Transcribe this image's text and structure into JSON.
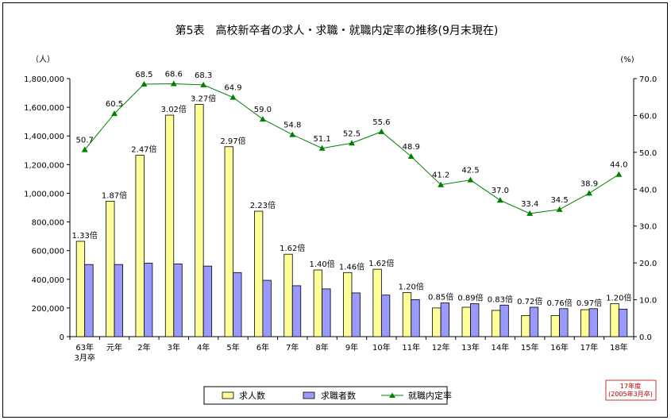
{
  "chart_data": {
    "type": "bar+line",
    "title": "第5表　高校新卒者の求人・求職・就職内定率の推移(9月末現在)",
    "left_unit": "（人）",
    "right_unit": "(%)",
    "ylim_left": [
      0,
      1800000
    ],
    "ylim_right": [
      0,
      70
    ],
    "yticks_left": [
      "0",
      "200,000",
      "400,000",
      "600,000",
      "800,000",
      "1,000,000",
      "1,200,000",
      "1,400,000",
      "1,600,000",
      "1,800,000"
    ],
    "yticks_right": [
      "0.0",
      "10.0",
      "20.0",
      "30.0",
      "40.0",
      "50.0",
      "60.0",
      "70.0"
    ],
    "categories": [
      {
        "line1": "63年",
        "line2": "3月卒"
      },
      {
        "line1": "元年",
        "line2": ""
      },
      {
        "line1": "2年",
        "line2": ""
      },
      {
        "line1": "3年",
        "line2": ""
      },
      {
        "line1": "4年",
        "line2": ""
      },
      {
        "line1": "5年",
        "line2": ""
      },
      {
        "line1": "6年",
        "line2": ""
      },
      {
        "line1": "7年",
        "line2": ""
      },
      {
        "line1": "8年",
        "line2": ""
      },
      {
        "line1": "9年",
        "line2": ""
      },
      {
        "line1": "10年",
        "line2": ""
      },
      {
        "line1": "11年",
        "line2": ""
      },
      {
        "line1": "12年",
        "line2": ""
      },
      {
        "line1": "13年",
        "line2": ""
      },
      {
        "line1": "14年",
        "line2": ""
      },
      {
        "line1": "15年",
        "line2": ""
      },
      {
        "line1": "16年",
        "line2": ""
      },
      {
        "line1": "17年",
        "line2": ""
      },
      {
        "line1": "18年",
        "line2": ""
      }
    ],
    "series": [
      {
        "name": "求人数",
        "type": "bar",
        "axis": "left",
        "color": "#ffff99",
        "values": [
          665000,
          945000,
          1265000,
          1545000,
          1620000,
          1325000,
          875000,
          575000,
          465000,
          447000,
          470000,
          307000,
          200000,
          205000,
          183000,
          147000,
          147000,
          188000,
          230000
        ]
      },
      {
        "name": "求職者数",
        "type": "bar",
        "axis": "left",
        "color": "#9999ff",
        "values": [
          503000,
          503000,
          513000,
          507000,
          492000,
          447000,
          393000,
          355000,
          333000,
          305000,
          290000,
          258000,
          235000,
          230000,
          220000,
          205000,
          195000,
          195000,
          192000
        ]
      },
      {
        "name": "就職内定率",
        "type": "line",
        "axis": "right",
        "color": "#008000",
        "values": [
          50.7,
          60.5,
          68.5,
          68.6,
          68.3,
          64.9,
          59.0,
          54.8,
          51.1,
          52.5,
          55.6,
          48.9,
          41.2,
          42.5,
          37.0,
          33.4,
          34.5,
          38.9,
          44.0
        ]
      }
    ],
    "ratio_labels": [
      "1.33倍",
      "1.87倍",
      "2.47倍",
      "3.02倍",
      "3.27倍",
      "2.97倍",
      "2.23倍",
      "1.62倍",
      "1.40倍",
      "1.46倍",
      "1.62倍",
      "1.20倍",
      "0.85倍",
      "0.89倍",
      "0.83倍",
      "0.72倍",
      "0.76倍",
      "0.97倍",
      "1.20倍"
    ],
    "rate_labels": [
      "50.7",
      "60.5",
      "68.5",
      "68.6",
      "68.3",
      "64.9",
      "59.0",
      "54.8",
      "51.1",
      "52.5",
      "55.6",
      "48.9",
      "41.2",
      "42.5",
      "37.0",
      "33.4",
      "34.5",
      "38.9",
      "44.0"
    ],
    "legend": [
      "求人数",
      "求職者数",
      "就職内定率"
    ],
    "note": {
      "line1": "17年度",
      "line2": "(2005年3月卒)"
    }
  }
}
